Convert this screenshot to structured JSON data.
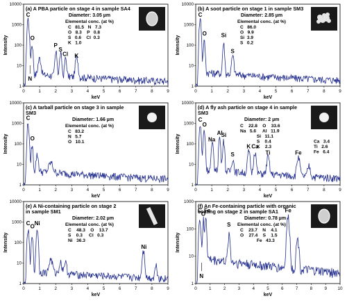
{
  "chart_data": [
    {
      "type": "line",
      "title_lines": [
        "(a) A PBA particle on stage 4 in sample SA4"
      ],
      "diameter": "Diameter: 3.05 µm",
      "elemental_heading": "Elemental conc. (at %)",
      "elemental_lines": [
        "C   81.5   N   7.3",
        "O   8.3    P   0.8",
        "S   0.6    Cl  0.3",
        "K   1.0"
      ],
      "xlabel": "keV",
      "ylabel": "Intensity",
      "xlim": [
        0,
        9
      ],
      "ylim_log": [
        1,
        10000
      ],
      "x_ticks": [
        0,
        1,
        2,
        3,
        4,
        5,
        6,
        7,
        8,
        9
      ],
      "y_ticks": [
        1,
        10,
        100,
        1000,
        10000
      ],
      "image": "blob",
      "peak_labels": [
        {
          "text": "C",
          "x": 0.28,
          "y": 2500
        },
        {
          "text": "O",
          "x": 0.55,
          "y": 180
        },
        {
          "text": "N",
          "x": 0.4,
          "y": 3,
          "arrow": true
        },
        {
          "text": "P",
          "x": 2.0,
          "y": 80
        },
        {
          "text": "S",
          "x": 2.3,
          "y": 50
        },
        {
          "text": "Cl",
          "x": 2.6,
          "y": 30
        },
        {
          "text": "K",
          "x": 3.3,
          "y": 25
        }
      ],
      "peaks": [
        [
          0.28,
          2000,
          0.06
        ],
        [
          0.39,
          30,
          0.05
        ],
        [
          0.53,
          110,
          0.06
        ],
        [
          1.0,
          20,
          0.1
        ],
        [
          2.02,
          40,
          0.07
        ],
        [
          2.31,
          35,
          0.07
        ],
        [
          2.62,
          20,
          0.07
        ],
        [
          3.31,
          25,
          0.09
        ]
      ],
      "background": 3
    },
    {
      "type": "line",
      "title_lines": [
        "(b) A soot particle on stage 1 in sample SM3"
      ],
      "diameter": "Diameter: 2.85 µm",
      "elemental_heading": "Elemental conc. (at %)",
      "elemental_lines": [
        "C   86.0",
        "O   9.9",
        "Si  3.9",
        "S   0.2"
      ],
      "xlabel": "keV",
      "ylabel": "Intensity",
      "xlim": [
        0,
        9
      ],
      "ylim_log": [
        1,
        10000
      ],
      "x_ticks": [
        0,
        1,
        2,
        3,
        4,
        5,
        6,
        7,
        8,
        9
      ],
      "y_ticks": [
        1,
        10,
        100,
        1000,
        10000
      ],
      "image": "soot",
      "peak_labels": [
        {
          "text": "C",
          "x": 0.28,
          "y": 2500
        },
        {
          "text": "O",
          "x": 0.55,
          "y": 300
        },
        {
          "text": "Si",
          "x": 1.75,
          "y": 250
        },
        {
          "text": "S",
          "x": 2.3,
          "y": 40
        }
      ],
      "peaks": [
        [
          0.28,
          2000,
          0.06
        ],
        [
          0.53,
          150,
          0.06
        ],
        [
          1.74,
          120,
          0.06
        ],
        [
          2.31,
          25,
          0.08
        ]
      ],
      "background": 4
    },
    {
      "type": "line",
      "title_lines": [
        "(c) A tarball particle on stage 3 in sample",
        "SM3"
      ],
      "diameter": "Diameter: 1.66 µm",
      "elemental_heading": "Elemental conc. (at %)",
      "elemental_lines": [
        "C   83.2",
        "N   5.7",
        "O   10.1"
      ],
      "xlabel": "keV",
      "ylabel": "Intensity",
      "xlim": [
        0,
        9
      ],
      "ylim_log": [
        1,
        10000
      ],
      "x_ticks": [
        0,
        1,
        2,
        3,
        4,
        5,
        6,
        7,
        8,
        9
      ],
      "y_ticks": [
        1,
        10,
        100,
        1000,
        10000
      ],
      "image": "ball",
      "peak_labels": [
        {
          "text": "C",
          "x": 0.28,
          "y": 1500
        },
        {
          "text": "O",
          "x": 0.55,
          "y": 150
        }
      ],
      "peaks": [
        [
          0.28,
          1000,
          0.06
        ],
        [
          0.53,
          80,
          0.06
        ],
        [
          0.85,
          25,
          0.08
        ],
        [
          1.7,
          8,
          0.15
        ]
      ],
      "background": 4
    },
    {
      "type": "line",
      "title_lines": [
        "(d) A fly ash particle on stage 4 in sample",
        "SM3"
      ],
      "diameter": "Diameter: 2 µm",
      "elemental_heading": "",
      "elemental_lines": [
        "C    22.8    O    33.6",
        "Na   5.6     Al   11.9",
        "             Si   11.1",
        "             S    0.4",
        "             K    2.3"
      ],
      "elemental_extra": [
        "Ca   3.4",
        "Ti   2.6",
        "Fe   6.4"
      ],
      "xlabel": "keV",
      "ylabel": "Intensity",
      "xlim": [
        0,
        9
      ],
      "ylim_log": [
        1,
        10000
      ],
      "x_ticks": [
        0,
        1,
        2,
        3,
        4,
        5,
        6,
        7,
        8,
        9
      ],
      "y_ticks": [
        1,
        10,
        100,
        1000,
        10000
      ],
      "image": "ball",
      "peak_labels": [
        {
          "text": "C",
          "x": 0.28,
          "y": 1200
        },
        {
          "text": "O",
          "x": 0.55,
          "y": 700
        },
        {
          "text": "Na",
          "x": 1.0,
          "y": 130
        },
        {
          "text": "Al",
          "x": 1.5,
          "y": 280
        },
        {
          "text": "Si",
          "x": 1.75,
          "y": 220
        },
        {
          "text": "S",
          "x": 2.3,
          "y": 25
        },
        {
          "text": "K",
          "x": 3.3,
          "y": 60
        },
        {
          "text": "Ca",
          "x": 3.7,
          "y": 60
        },
        {
          "text": "Ti",
          "x": 4.5,
          "y": 30
        },
        {
          "text": "Fe",
          "x": 6.4,
          "y": 30
        }
      ],
      "peaks": [
        [
          0.28,
          800,
          0.06
        ],
        [
          0.53,
          450,
          0.06
        ],
        [
          1.04,
          90,
          0.07
        ],
        [
          1.49,
          200,
          0.06
        ],
        [
          1.74,
          160,
          0.06
        ],
        [
          2.31,
          15,
          0.08
        ],
        [
          3.31,
          40,
          0.08
        ],
        [
          3.69,
          40,
          0.08
        ],
        [
          4.51,
          20,
          0.09
        ],
        [
          6.4,
          20,
          0.1
        ],
        [
          7.06,
          6,
          0.1
        ]
      ],
      "background": 5
    },
    {
      "type": "line",
      "title_lines": [
        "(e) A Ni-containing particle on stage 2",
        "in sample SM1"
      ],
      "diameter": "Diameter: 2.02 µm",
      "elemental_heading": "Elemental conc. (at %)",
      "elemental_lines": [
        "C    48.3    O    13.7",
        "S    0.3     Cl   0.3",
        "Ni   36.3"
      ],
      "xlabel": "keV",
      "ylabel": "Intensity",
      "xlim": [
        0,
        9
      ],
      "ylim_log": [
        1,
        10000
      ],
      "x_ticks": [
        0,
        1,
        2,
        3,
        4,
        5,
        6,
        7,
        8,
        9
      ],
      "y_ticks": [
        1,
        10,
        100,
        1000,
        10000
      ],
      "image": "rod",
      "peak_labels": [
        {
          "text": "C",
          "x": 0.28,
          "y": 700
        },
        {
          "text": "O",
          "x": 0.55,
          "y": 500
        },
        {
          "text": "Ni",
          "x": 0.85,
          "y": 700
        },
        {
          "text": "Ni",
          "x": 7.5,
          "y": 50
        }
      ],
      "peaks": [
        [
          0.28,
          400,
          0.06
        ],
        [
          0.53,
          300,
          0.05
        ],
        [
          0.85,
          500,
          0.06
        ],
        [
          1.7,
          12,
          0.12
        ],
        [
          2.3,
          8,
          0.1
        ],
        [
          2.6,
          8,
          0.1
        ],
        [
          7.47,
          40,
          0.08
        ],
        [
          8.26,
          6,
          0.08
        ]
      ],
      "background": 3
    },
    {
      "type": "line",
      "title_lines": [
        "(f) An Fe-containing particle with organic",
        "coating on stage 2 in sample SA1"
      ],
      "diameter": "Diameter: 0.78 µm",
      "elemental_heading": "Elemental conc. (at %)",
      "elemental_lines": [
        "C    23.7    N    4.1",
        "O    27.4    S    1.5",
        "             Fe   43.3"
      ],
      "xlabel": "keV",
      "ylabel": "Intensity",
      "xlim": [
        0,
        10
      ],
      "ylim_log": [
        1,
        1000
      ],
      "x_ticks": [
        0,
        1,
        2,
        3,
        4,
        5,
        6,
        7,
        8,
        9,
        10
      ],
      "y_ticks": [
        1,
        10,
        100,
        1000
      ],
      "image": "blob",
      "peak_labels": [
        {
          "text": "C",
          "x": 0.28,
          "y": 400
        },
        {
          "text": "O",
          "x": 0.53,
          "y": 300
        },
        {
          "text": "Fe",
          "x": 0.8,
          "y": 400
        },
        {
          "text": "N",
          "x": 0.4,
          "y": 3,
          "arrow": true
        },
        {
          "text": "S",
          "x": 2.3,
          "y": 120
        },
        {
          "text": "Fe",
          "x": 6.4,
          "y": 400
        }
      ],
      "peaks": [
        [
          0.28,
          300,
          0.06
        ],
        [
          0.39,
          20,
          0.05
        ],
        [
          0.53,
          200,
          0.05
        ],
        [
          0.7,
          300,
          0.06
        ],
        [
          2.31,
          60,
          0.08
        ],
        [
          6.4,
          250,
          0.1
        ],
        [
          7.06,
          40,
          0.1
        ]
      ],
      "background": 8
    }
  ]
}
